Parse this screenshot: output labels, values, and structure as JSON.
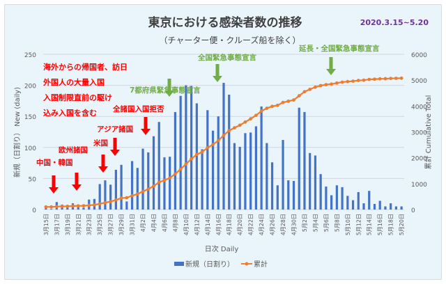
{
  "chart_data": {
    "type": "bar+line",
    "title": "東京における感染者数の推移",
    "subtitle": "（チャーター便・クルーズ船を除く）",
    "date_range": "2020.3.15~5.20",
    "xlabel": "日次  Daily",
    "ylabel_left": "新規（日割り） New (daily)",
    "ylabel_right": "累計  Cumulative Total",
    "ylim_left": [
      0,
      250
    ],
    "yticks_left": [
      0,
      50,
      100,
      150,
      200,
      250
    ],
    "ylim_right": [
      0,
      6000
    ],
    "yticks_right": [
      0,
      1000,
      2000,
      3000,
      4000,
      5000,
      6000
    ],
    "grid": true,
    "legend_position": "bottom",
    "categories": [
      "3月15日",
      "3月16日",
      "3月17日",
      "3月18日",
      "3月19日",
      "3月20日",
      "3月21日",
      "3月22日",
      "3月23日",
      "3月24日",
      "3月25日",
      "3月26日",
      "3月27日",
      "3月28日",
      "3月29日",
      "3月30日",
      "3月31日",
      "4月1日",
      "4月2日",
      "4月3日",
      "4月4日",
      "4月5日",
      "4月6日",
      "4月7日",
      "4月8日",
      "4月9日",
      "4月10日",
      "4月11日",
      "4月12日",
      "4月13日",
      "4月14日",
      "4月15日",
      "4月16日",
      "4月17日",
      "4月18日",
      "4月19日",
      "4月20日",
      "4月21日",
      "4月22日",
      "4月23日",
      "4月24日",
      "4月25日",
      "4月26日",
      "4月27日",
      "4月28日",
      "4月29日",
      "4月30日",
      "5月1日",
      "5月2日",
      "5月3日",
      "5月4日",
      "5月5日",
      "5月6日",
      "5月7日",
      "5月8日",
      "5月9日",
      "5月10日",
      "5月11日",
      "5月12日",
      "5月13日",
      "5月14日",
      "5月15日",
      "5月16日",
      "5月17日",
      "5月18日",
      "5月19日",
      "5月20日"
    ],
    "series": [
      {
        "name": "新規（日割り）",
        "type": "bar",
        "color": "#4472c4",
        "values": [
          2,
          1,
          12,
          8,
          4,
          10,
          7,
          3,
          16,
          17,
          41,
          47,
          40,
          64,
          72,
          13,
          78,
          67,
          98,
          92,
          118,
          141,
          84,
          85,
          157,
          183,
          200,
          199,
          171,
          97,
          160,
          127,
          150,
          204,
          185,
          107,
          101,
          123,
          124,
          134,
          166,
          107,
          76,
          39,
          112,
          47,
          46,
          164,
          157,
          91,
          87,
          57,
          37,
          23,
          39,
          36,
          22,
          15,
          28,
          10,
          30,
          9,
          14,
          5,
          10,
          5,
          5
        ]
      },
      {
        "name": "累計",
        "type": "line",
        "color": "#ed7d31",
        "values": [
          100,
          101,
          113,
          121,
          125,
          135,
          142,
          145,
          161,
          178,
          219,
          266,
          306,
          370,
          442,
          455,
          533,
          600,
          698,
          790,
          908,
          1049,
          1133,
          1218,
          1375,
          1558,
          1758,
          1957,
          2128,
          2225,
          2385,
          2512,
          2662,
          2866,
          3051,
          3158,
          3259,
          3382,
          3506,
          3640,
          3806,
          3913,
          3989,
          4028,
          4140,
          4187,
          4233,
          4397,
          4554,
          4645,
          4732,
          4789,
          4826,
          4849,
          4888,
          4924,
          4946,
          4961,
          4989,
          4999,
          5029,
          5038,
          5052,
          5057,
          5067,
          5072,
          5077
        ]
      }
    ],
    "note_lines": [
      "海外からの帰国者、訪日",
      "外国人の大量入国",
      "入国制限直前の駆け",
      "込み入国を含む"
    ],
    "annotations": [
      {
        "text": "中国・韓国",
        "date": "3月16日",
        "color": "#ff0000"
      },
      {
        "text": "欧州諸国",
        "date": "3月21日",
        "color": "#ff0000"
      },
      {
        "text": "米国",
        "date": "3月26日",
        "color": "#ff0000"
      },
      {
        "text": "アジア諸国",
        "date": "3月28日",
        "color": "#ff0000"
      },
      {
        "text": "全諸国入国拒否",
        "date": "4月3日",
        "color": "#ff0000"
      },
      {
        "text": "7都府県緊急事態宣言",
        "date": "4月7日",
        "color": "#70ad47"
      },
      {
        "text": "全国緊急事態宣言",
        "date": "4月16日",
        "color": "#70ad47"
      },
      {
        "text": "延長・全国緊急事態宣言",
        "date": "5月4日",
        "color": "#70ad47"
      }
    ]
  }
}
